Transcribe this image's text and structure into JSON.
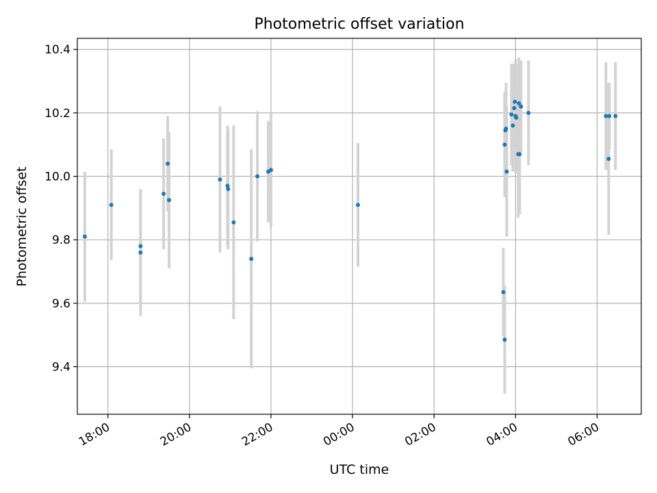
{
  "chart_data": {
    "type": "scatter",
    "title": "Photometric offset variation",
    "xlabel": "UTC time",
    "ylabel": "Photometric offset",
    "x_ticks": [
      "18:00",
      "20:00",
      "22:00",
      "00:00",
      "02:00",
      "04:00",
      "06:00"
    ],
    "y_ticks": [
      "9.4",
      "9.6",
      "9.8",
      "10.0",
      "10.2",
      "10.4"
    ],
    "grid": true,
    "xlim": [
      "17:15",
      "07:05"
    ],
    "ylim": [
      9.25,
      10.435
    ],
    "x_tick_values": [
      "18:00",
      "20:00",
      "22:00",
      "00:00",
      "02:00",
      "04:00",
      "06:00"
    ],
    "y_tick_values": [
      9.4,
      9.6,
      9.8,
      10.0,
      10.2,
      10.4
    ],
    "colors": {
      "points": "#1f77b4",
      "errorbars": "#d3d3d3",
      "grid": "#b0b0b0"
    },
    "series": [
      {
        "points": [
          {
            "x": "17:26",
            "y": 9.81,
            "err": 0.205
          },
          {
            "x": "18:05",
            "y": 9.91,
            "err": 0.175
          },
          {
            "x": "18:48",
            "y": 9.76,
            "err": 0.2
          },
          {
            "x": "18:48",
            "y": 9.78,
            "err": 0.18
          },
          {
            "x": "19:22",
            "y": 9.945,
            "err": 0.175
          },
          {
            "x": "19:28",
            "y": 10.04,
            "err": 0.15
          },
          {
            "x": "19:30",
            "y": 9.925,
            "err": 0.215
          },
          {
            "x": "20:45",
            "y": 9.99,
            "err": 0.23
          },
          {
            "x": "20:56",
            "y": 9.97,
            "err": 0.19
          },
          {
            "x": "20:57",
            "y": 9.96,
            "err": 0.19
          },
          {
            "x": "21:05",
            "y": 9.855,
            "err": 0.305
          },
          {
            "x": "21:31",
            "y": 9.74,
            "err": 0.345
          },
          {
            "x": "21:40",
            "y": 10.0,
            "err": 0.205
          },
          {
            "x": "21:56",
            "y": 10.015,
            "err": 0.16
          },
          {
            "x": "22:00",
            "y": 10.02,
            "err": 0.18
          },
          {
            "x": "00:08",
            "y": 9.91,
            "err": 0.195
          },
          {
            "x": "03:42",
            "y": 9.635,
            "err": 0.14
          },
          {
            "x": "03:44",
            "y": 10.1,
            "err": 0.165
          },
          {
            "x": "03:44",
            "y": 9.485,
            "err": 0.17
          },
          {
            "x": "03:45",
            "y": 10.145,
            "err": 0.12
          },
          {
            "x": "03:46",
            "y": 10.15,
            "err": 0.145
          },
          {
            "x": "03:47",
            "y": 10.015,
            "err": 0.205
          },
          {
            "x": "03:54",
            "y": 10.195,
            "err": 0.16
          },
          {
            "x": "03:56",
            "y": 10.16,
            "err": 0.145
          },
          {
            "x": "03:58",
            "y": 10.215,
            "err": 0.14
          },
          {
            "x": "03:59",
            "y": 10.235,
            "err": 0.12
          },
          {
            "x": "04:00",
            "y": 10.19,
            "err": 0.18
          },
          {
            "x": "04:01",
            "y": 10.185,
            "err": 0.17
          },
          {
            "x": "04:04",
            "y": 10.07,
            "err": 0.2
          },
          {
            "x": "04:05",
            "y": 10.23,
            "err": 0.145
          },
          {
            "x": "04:06",
            "y": 10.07,
            "err": 0.19
          },
          {
            "x": "04:08",
            "y": 10.22,
            "err": 0.145
          },
          {
            "x": "04:19",
            "y": 10.2,
            "err": 0.165
          },
          {
            "x": "06:13",
            "y": 10.19,
            "err": 0.17
          },
          {
            "x": "06:17",
            "y": 10.055,
            "err": 0.24
          },
          {
            "x": "06:18",
            "y": 10.19,
            "err": 0.105
          },
          {
            "x": "06:27",
            "y": 10.19,
            "err": 0.17
          }
        ]
      }
    ]
  }
}
